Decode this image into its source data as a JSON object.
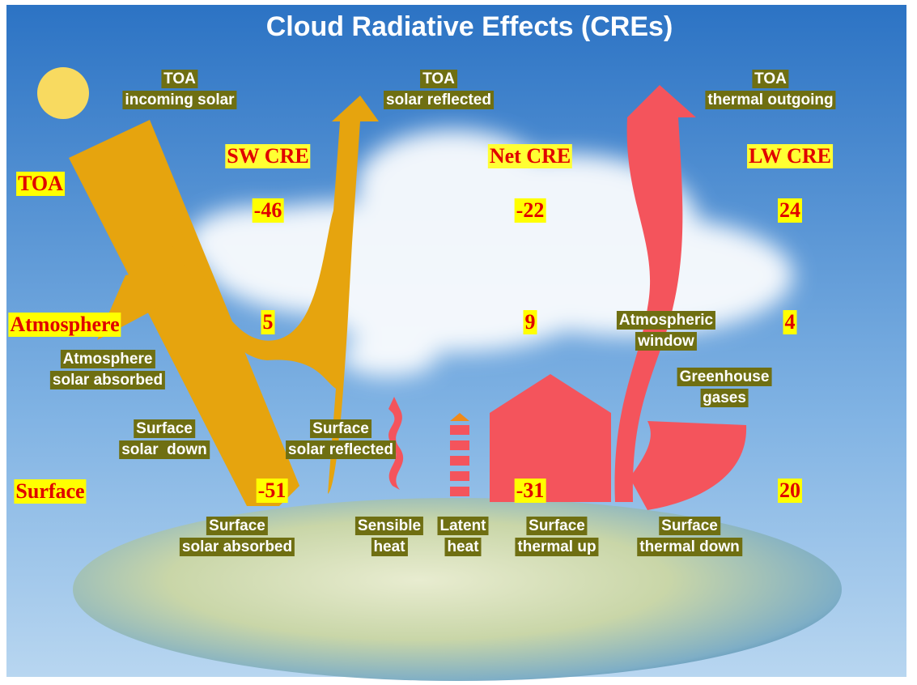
{
  "title": "Cloud Radiative Effects (CREs)",
  "columns": [
    "SW CRE",
    "Net CRE",
    "LW CRE"
  ],
  "rows": [
    {
      "label": "TOA",
      "values": [
        -46,
        -22,
        24
      ]
    },
    {
      "label": "Atmosphere",
      "values": [
        5,
        9,
        4
      ]
    },
    {
      "label": "Surface",
      "values": [
        -51,
        -31,
        20
      ]
    }
  ],
  "flows": [
    {
      "lines": [
        "TOA",
        "incoming solar"
      ]
    },
    {
      "lines": [
        "TOA",
        "solar reflected"
      ]
    },
    {
      "lines": [
        "TOA",
        "thermal outgoing"
      ]
    },
    {
      "lines": [
        "Atmosphere",
        "solar absorbed"
      ]
    },
    {
      "lines": [
        "Surface",
        "solar  down"
      ]
    },
    {
      "lines": [
        "Surface",
        "solar reflected"
      ]
    },
    {
      "lines": [
        "Atmospheric",
        "window"
      ]
    },
    {
      "lines": [
        "Greenhouse",
        "gases"
      ]
    },
    {
      "lines": [
        "Surface",
        "solar absorbed"
      ]
    },
    {
      "lines": [
        "Sensible",
        "heat"
      ]
    },
    {
      "lines": [
        "Latent",
        "heat"
      ]
    },
    {
      "lines": [
        "Surface",
        "thermal up"
      ]
    },
    {
      "lines": [
        "Surface",
        "thermal down"
      ]
    }
  ]
}
